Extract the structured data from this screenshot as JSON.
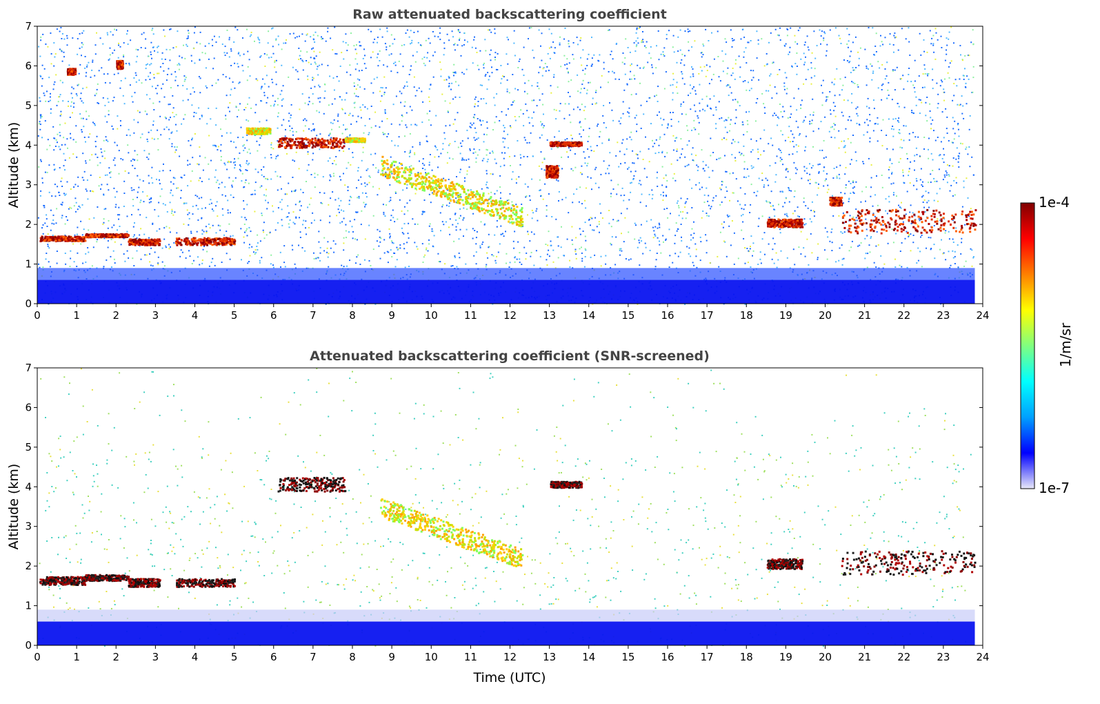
{
  "chart_data": [
    {
      "type": "heatmap",
      "title": "Raw attenuated backscattering coefficient",
      "xlabel": "",
      "ylabel": "Altitude (km)",
      "xlim": [
        0,
        24
      ],
      "ylim": [
        0,
        7
      ],
      "x_ticks": [
        "0",
        "1",
        "2",
        "3",
        "4",
        "5",
        "6",
        "7",
        "8",
        "9",
        "10",
        "11",
        "12",
        "13",
        "14",
        "15",
        "16",
        "17",
        "18",
        "19",
        "20",
        "21",
        "22",
        "23",
        "24"
      ],
      "y_ticks": [
        "0",
        "1",
        "2",
        "3",
        "4",
        "5",
        "6",
        "7"
      ],
      "features": [
        {
          "kind": "cloud",
          "t": [
            0.05,
            1.2
          ],
          "alt": [
            1.6,
            1.72
          ],
          "level": "high"
        },
        {
          "kind": "cloud",
          "t": [
            1.2,
            2.3
          ],
          "alt": [
            1.7,
            1.78
          ],
          "level": "high"
        },
        {
          "kind": "cloud",
          "t": [
            2.3,
            3.1
          ],
          "alt": [
            1.5,
            1.65
          ],
          "level": "high"
        },
        {
          "kind": "cloud",
          "t": [
            3.5,
            5.0
          ],
          "alt": [
            1.5,
            1.68
          ],
          "level": "high"
        },
        {
          "kind": "cloud",
          "t": [
            0.75,
            0.95
          ],
          "alt": [
            5.8,
            5.95
          ],
          "level": "high"
        },
        {
          "kind": "cloud",
          "t": [
            2.0,
            2.15
          ],
          "alt": [
            5.95,
            6.15
          ],
          "level": "high"
        },
        {
          "kind": "cloud",
          "t": [
            6.1,
            7.8
          ],
          "alt": [
            3.95,
            4.2
          ],
          "level": "high"
        },
        {
          "kind": "cloud",
          "t": [
            5.3,
            5.9
          ],
          "alt": [
            4.3,
            4.45
          ],
          "level": "mid"
        },
        {
          "kind": "cloud",
          "t": [
            7.8,
            8.3
          ],
          "alt": [
            4.1,
            4.2
          ],
          "level": "mid"
        },
        {
          "kind": "aerosol",
          "t": [
            8.7,
            12.3
          ],
          "alt": [
            2.2,
            3.5
          ],
          "level": "mid"
        },
        {
          "kind": "cloud",
          "t": [
            13.0,
            13.8
          ],
          "alt": [
            4.0,
            4.1
          ],
          "level": "high"
        },
        {
          "kind": "cloud",
          "t": [
            12.9,
            13.2
          ],
          "alt": [
            3.2,
            3.5
          ],
          "level": "high"
        },
        {
          "kind": "cloud",
          "t": [
            18.5,
            19.4
          ],
          "alt": [
            1.95,
            2.15
          ],
          "level": "high"
        },
        {
          "kind": "cloud",
          "t": [
            20.1,
            20.4
          ],
          "alt": [
            2.5,
            2.7
          ],
          "level": "high"
        },
        {
          "kind": "cloud",
          "t": [
            20.4,
            23.8
          ],
          "alt": [
            1.8,
            2.4
          ],
          "level": "high"
        }
      ]
    },
    {
      "type": "heatmap",
      "title": "Attenuated backscattering coefficient (SNR-screened)",
      "xlabel": "Time (UTC)",
      "ylabel": "Altitude (km)",
      "xlim": [
        0,
        24
      ],
      "ylim": [
        0,
        7
      ],
      "x_ticks": [
        "0",
        "1",
        "2",
        "3",
        "4",
        "5",
        "6",
        "7",
        "8",
        "9",
        "10",
        "11",
        "12",
        "13",
        "14",
        "15",
        "16",
        "17",
        "18",
        "19",
        "20",
        "21",
        "22",
        "23",
        "24"
      ],
      "y_ticks": [
        "0",
        "1",
        "2",
        "3",
        "4",
        "5",
        "6",
        "7"
      ],
      "features": [
        {
          "kind": "cloud",
          "t": [
            0.05,
            1.2
          ],
          "alt": [
            1.55,
            1.75
          ],
          "level": "saturated"
        },
        {
          "kind": "cloud",
          "t": [
            1.2,
            2.3
          ],
          "alt": [
            1.65,
            1.8
          ],
          "level": "saturated"
        },
        {
          "kind": "cloud",
          "t": [
            2.3,
            3.1
          ],
          "alt": [
            1.5,
            1.7
          ],
          "level": "saturated"
        },
        {
          "kind": "cloud",
          "t": [
            3.5,
            5.0
          ],
          "alt": [
            1.5,
            1.7
          ],
          "level": "saturated"
        },
        {
          "kind": "cloud",
          "t": [
            6.1,
            7.8
          ],
          "alt": [
            3.9,
            4.25
          ],
          "level": "saturated"
        },
        {
          "kind": "cloud",
          "t": [
            13.0,
            13.8
          ],
          "alt": [
            4.0,
            4.15
          ],
          "level": "saturated"
        },
        {
          "kind": "cloud",
          "t": [
            18.5,
            19.4
          ],
          "alt": [
            1.95,
            2.2
          ],
          "level": "saturated"
        },
        {
          "kind": "cloud",
          "t": [
            20.4,
            23.8
          ],
          "alt": [
            1.8,
            2.4
          ],
          "level": "saturated"
        },
        {
          "kind": "aerosol",
          "t": [
            8.7,
            12.3
          ],
          "alt": [
            2.2,
            3.5
          ],
          "level": "mid"
        }
      ]
    }
  ],
  "colorbar": {
    "label": "1/m/sr",
    "max_label": "1e-4",
    "min_label": "1e-7",
    "colormap": "jet",
    "colors": [
      "#e8e8f8",
      "#0000ff",
      "#00a0ff",
      "#00ffff",
      "#80ff80",
      "#ffff00",
      "#ff8000",
      "#ff0000",
      "#800000"
    ]
  }
}
